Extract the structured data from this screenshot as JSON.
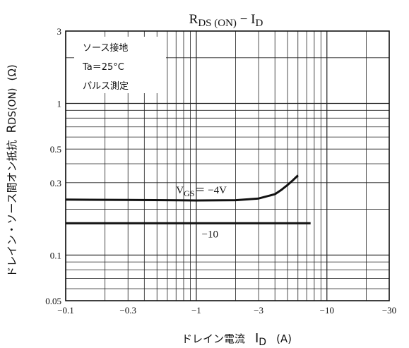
{
  "chart_data": {
    "type": "line",
    "title": {
      "main": "R",
      "main_sub": "DS (ON)",
      "sep": " − ",
      "tail": "I",
      "tail_sub": "D"
    },
    "xlabel": {
      "text": "ドレイン電流",
      "symbol": "I",
      "symbol_sub": "D",
      "unit": "(A)"
    },
    "ylabel": {
      "text": "ドレイン・ソース間オン抵抗",
      "symbol": "R",
      "symbol_sub": "DS(ON)",
      "unit": "(Ω)"
    },
    "x_scale": "log",
    "y_scale": "log",
    "x_direction": "negative-magnitude",
    "xlim": [
      0.1,
      30
    ],
    "ylim": [
      0.05,
      3
    ],
    "x_ticks": [
      {
        "value": 0.1,
        "label": "−0.1"
      },
      {
        "value": 0.3,
        "label": "−0.3"
      },
      {
        "value": 1,
        "label": "−1"
      },
      {
        "value": 3,
        "label": "−3"
      },
      {
        "value": 10,
        "label": "−10"
      },
      {
        "value": 30,
        "label": "−30"
      }
    ],
    "y_ticks": [
      {
        "value": 0.05,
        "label": "0.05"
      },
      {
        "value": 0.1,
        "label": "0.1"
      },
      {
        "value": 0.3,
        "label": "0.3"
      },
      {
        "value": 0.5,
        "label": "0.5"
      },
      {
        "value": 1,
        "label": "1"
      },
      {
        "value": 3,
        "label": "3"
      }
    ],
    "grid": true,
    "conditions": [
      "ソース接地",
      "Ta＝25°C",
      "パルス測定"
    ],
    "series": [
      {
        "name": "V_GS = −4V",
        "label": {
          "main": "V",
          "sub": "GS",
          "rest": "＝ −4V"
        },
        "x": [
          0.1,
          0.3,
          1,
          2,
          3,
          4,
          4.5,
          5,
          5.5,
          6
        ],
        "y": [
          0.232,
          0.231,
          0.229,
          0.23,
          0.236,
          0.252,
          0.27,
          0.29,
          0.312,
          0.335
        ]
      },
      {
        "name": "−10",
        "label": {
          "main": "−10",
          "sub": "",
          "rest": ""
        },
        "x": [
          0.1,
          0.3,
          1,
          3,
          7.5
        ],
        "y": [
          0.162,
          0.162,
          0.162,
          0.162,
          0.162
        ]
      }
    ]
  }
}
